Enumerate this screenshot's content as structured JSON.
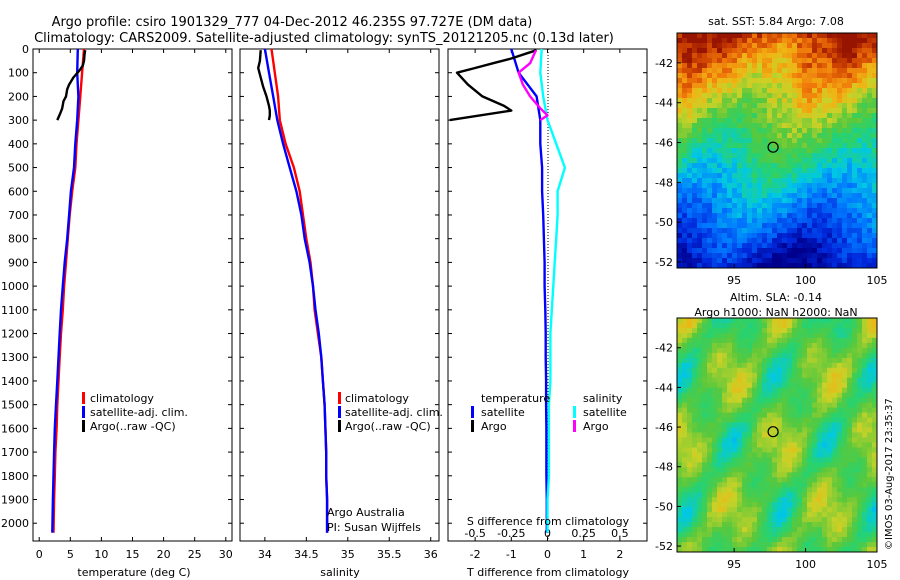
{
  "title_line1": "Argo profile: csiro 1901329_777 04-Dec-2012 46.235S 97.727E (DM data)",
  "title_line2": "Climatology: CARS2009. Satellite-adjusted climatology: synTS_20121205.nc (0.13d later)",
  "footer_vertical": "©IMOS 03-Aug-2017 23:35:37",
  "colors": {
    "climatology": "#ff0000",
    "satellite_adj": "#0000ff",
    "argo": "#000000",
    "sal_satellite": "#00ffff",
    "sal_argo": "#ff00ff"
  },
  "chart_data": [
    {
      "id": "temperature",
      "type": "line",
      "xlabel": "temperature (deg C)",
      "ylabel": "",
      "xlim": [
        -1,
        31
      ],
      "ylim": [
        2075,
        0
      ],
      "xticks": [
        0,
        5,
        10,
        15,
        20,
        25,
        30
      ],
      "xtick_labels": [
        "0",
        "5",
        "10",
        "15",
        "20",
        "25",
        "30"
      ],
      "yticks": [
        0,
        100,
        200,
        300,
        400,
        500,
        600,
        700,
        800,
        900,
        1000,
        1100,
        1200,
        1300,
        1400,
        1500,
        1600,
        1700,
        1800,
        1900,
        2000
      ],
      "ytick_labels": [
        "0",
        "100",
        "200",
        "300",
        "400",
        "500",
        "600",
        "700",
        "800",
        "900",
        "1000",
        "1100",
        "1200",
        "1300",
        "1400",
        "1500",
        "1600",
        "1700",
        "1800",
        "1900",
        "2000"
      ],
      "legend": [
        "climatology",
        "satellite-adj. clim.",
        "Argo(..raw -QC)"
      ],
      "legend_position": "lower-center",
      "series": [
        {
          "name": "climatology",
          "color_key": "climatology",
          "x": [
            7.2,
            6.9,
            6.6,
            6.3,
            6.0,
            5.8,
            5.3,
            4.9,
            4.6,
            4.3,
            4.0,
            3.8,
            3.5,
            3.3,
            3.1,
            2.9,
            2.8,
            2.6,
            2.5,
            2.4,
            2.3
          ],
          "y": [
            0,
            100,
            200,
            300,
            400,
            500,
            600,
            700,
            800,
            900,
            1000,
            1100,
            1200,
            1300,
            1400,
            1500,
            1600,
            1700,
            1800,
            1900,
            2040
          ]
        },
        {
          "name": "satellite-adj. clim.",
          "color_key": "satellite_adj",
          "x": [
            6.2,
            6.1,
            6.3,
            6.1,
            5.8,
            5.6,
            5.1,
            4.8,
            4.5,
            4.1,
            3.8,
            3.5,
            3.3,
            3.1,
            2.9,
            2.7,
            2.5,
            2.4,
            2.3,
            2.2,
            2.1
          ],
          "y": [
            0,
            100,
            200,
            300,
            400,
            500,
            600,
            700,
            800,
            900,
            1000,
            1100,
            1200,
            1300,
            1400,
            1500,
            1600,
            1700,
            1800,
            1900,
            2040
          ]
        },
        {
          "name": "Argo(..raw -QC)",
          "color_key": "argo",
          "x": [
            7.4,
            7.3,
            7.2,
            7.0,
            6.5,
            5.5,
            4.8,
            4.5,
            4.3,
            3.9,
            3.7,
            3.4,
            2.9
          ],
          "y": [
            5,
            20,
            50,
            70,
            90,
            120,
            150,
            170,
            200,
            220,
            250,
            270,
            300
          ]
        }
      ]
    },
    {
      "id": "salinity",
      "type": "line",
      "xlabel": "salinity",
      "ylabel": "",
      "xlim": [
        33.7,
        36.1
      ],
      "ylim": [
        2075,
        0
      ],
      "xticks": [
        34,
        34.5,
        35,
        35.5,
        36
      ],
      "xtick_labels": [
        "34",
        "34.5",
        "35",
        "35.5",
        "36"
      ],
      "legend": [
        "climatology",
        "satellite-adj. clim.",
        "Argo(..raw -QC)"
      ],
      "legend_position": "lower-right",
      "annotations": [
        "Argo Australia",
        "PI: Susan Wijffels"
      ],
      "series": [
        {
          "name": "climatology",
          "color_key": "climatology",
          "x": [
            34.08,
            34.12,
            34.16,
            34.18,
            34.25,
            34.35,
            34.42,
            34.46,
            34.5,
            34.55,
            34.58,
            34.6,
            34.64,
            34.68,
            34.7,
            34.72,
            34.73,
            34.74,
            34.74,
            34.75,
            34.75
          ],
          "y": [
            0,
            100,
            200,
            300,
            400,
            500,
            600,
            700,
            800,
            900,
            1000,
            1100,
            1200,
            1300,
            1400,
            1500,
            1600,
            1700,
            1800,
            1900,
            2040
          ]
        },
        {
          "name": "satellite-adj. clim.",
          "color_key": "satellite_adj",
          "x": [
            34.0,
            34.05,
            34.1,
            34.15,
            34.22,
            34.3,
            34.38,
            34.44,
            34.48,
            34.54,
            34.58,
            34.61,
            34.65,
            34.68,
            34.7,
            34.72,
            34.73,
            34.74,
            34.74,
            34.75,
            34.75
          ],
          "y": [
            0,
            100,
            200,
            300,
            400,
            500,
            600,
            700,
            800,
            900,
            1000,
            1100,
            1200,
            1300,
            1400,
            1500,
            1600,
            1700,
            1800,
            1900,
            2040
          ]
        },
        {
          "name": "Argo(..raw -QC)",
          "color_key": "argo",
          "x": [
            33.95,
            33.94,
            33.92,
            33.95,
            33.98,
            34.02,
            34.05,
            34.06,
            34.06,
            34.05
          ],
          "y": [
            5,
            50,
            80,
            120,
            160,
            200,
            240,
            260,
            280,
            300
          ]
        }
      ]
    },
    {
      "id": "difference",
      "type": "line",
      "xlabel": "T difference from climatology",
      "top_axis_label": "S difference from climatology",
      "xlim": [
        -2.75,
        2.75
      ],
      "ylim": [
        2075,
        0
      ],
      "xticks": [
        -2,
        -1,
        0,
        1,
        2
      ],
      "xtick_labels": [
        "-2",
        "-1",
        "0",
        "1",
        "2"
      ],
      "top_ticks": [
        -0.5,
        -0.25,
        0,
        0.25,
        0.5
      ],
      "top_tick_labels": [
        "-0.5",
        "-0.25",
        "0",
        "0.25",
        "0.5"
      ],
      "legend_headers": [
        "temperature",
        "salinity"
      ],
      "legend": [
        "satellite",
        "Argo",
        "satellite",
        "Argo"
      ],
      "legend_position": "lower-center",
      "series": [
        {
          "name": "satellite",
          "group": "temperature",
          "color_key": "satellite_adj",
          "x": [
            -1.0,
            -0.8,
            -0.3,
            -0.2,
            -0.2,
            -0.15,
            -0.15,
            -0.12,
            -0.1,
            -0.08,
            -0.08,
            -0.06,
            -0.05,
            -0.05,
            -0.04,
            -0.04,
            -0.03,
            -0.03,
            -0.03,
            -0.02,
            -0.02
          ],
          "y": [
            0,
            100,
            200,
            300,
            400,
            500,
            600,
            700,
            800,
            900,
            1000,
            1100,
            1200,
            1300,
            1400,
            1500,
            1600,
            1700,
            1800,
            1900,
            2040
          ]
        },
        {
          "name": "Argo",
          "group": "temperature",
          "color_key": "argo",
          "x": [
            -0.3,
            -0.6,
            -1.0,
            -1.5,
            -2.0,
            -2.5,
            -2.2,
            -1.8,
            -1.2,
            -1.0,
            -2.7
          ],
          "y": [
            5,
            20,
            40,
            60,
            80,
            100,
            150,
            200,
            240,
            260,
            300
          ]
        },
        {
          "name": "satellite",
          "group": "salinity",
          "color_key": "sal_satellite",
          "x": [
            -0.04,
            -0.05,
            -0.03,
            0.0,
            0.06,
            0.12,
            0.07,
            0.07,
            0.06,
            0.05,
            0.04,
            0.03,
            0.02,
            0.02,
            0.02,
            0.01,
            0.01,
            0.01,
            0.01,
            0.0,
            0.0
          ],
          "y": [
            0,
            100,
            200,
            300,
            400,
            500,
            600,
            700,
            800,
            900,
            1000,
            1100,
            1200,
            1300,
            1400,
            1500,
            1600,
            1700,
            1800,
            1900,
            2040
          ]
        },
        {
          "name": "Argo",
          "group": "salinity",
          "color_key": "sal_argo",
          "x": [
            -0.08,
            -0.12,
            -0.2,
            -0.17,
            -0.12,
            -0.05,
            0.0,
            -0.05
          ],
          "y": [
            5,
            60,
            100,
            150,
            200,
            250,
            280,
            300
          ]
        }
      ]
    },
    {
      "id": "sst_map",
      "type": "heatmap",
      "title": "sat. SST: 5.84  Argo: 7.08",
      "xlim": [
        91,
        105
      ],
      "ylim": [
        -52.3,
        -40.5
      ],
      "xticks": [
        95,
        100,
        105
      ],
      "xtick_labels": [
        "95",
        "100",
        "105"
      ],
      "yticks": [
        -42,
        -44,
        -46,
        -48,
        -50,
        -52
      ],
      "ytick_labels": [
        "-42",
        "-44",
        "-46",
        "-48",
        "-50",
        "-52"
      ],
      "marker": {
        "lon": 97.727,
        "lat": -46.235
      }
    },
    {
      "id": "sla_map",
      "type": "heatmap",
      "title": "Altim. SLA: -0.14",
      "subtitle": "Argo h1000: NaN h2000: NaN",
      "xlim": [
        91,
        105
      ],
      "ylim": [
        -52.3,
        -40.5
      ],
      "xticks": [
        95,
        100,
        105
      ],
      "xtick_labels": [
        "95",
        "100",
        "105"
      ],
      "yticks": [
        -42,
        -44,
        -46,
        -48,
        -50,
        -52
      ],
      "ytick_labels": [
        "-42",
        "-44",
        "-46",
        "-48",
        "-50",
        "-52"
      ],
      "marker": {
        "lon": 97.727,
        "lat": -46.235
      }
    }
  ]
}
